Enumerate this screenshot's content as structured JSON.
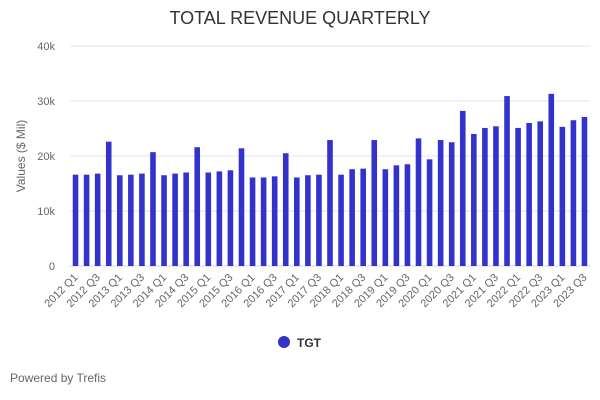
{
  "chart_data": {
    "type": "bar",
    "title": "TOTAL REVENUE QUARTERLY",
    "ylabel": "Values ($ Mil)",
    "xlabel": "",
    "ylim": [
      0,
      40000
    ],
    "yticks": [
      0,
      10000,
      20000,
      30000,
      40000
    ],
    "ytick_labels": [
      "0",
      "10k",
      "20k",
      "30k",
      "40k"
    ],
    "grid": true,
    "legend_position": "bottom",
    "color": "#3333cc",
    "categories": [
      "2012 Q1",
      "2012 Q2",
      "2012 Q3",
      "2012 Q4",
      "2013 Q1",
      "2013 Q2",
      "2013 Q3",
      "2013 Q4",
      "2014 Q1",
      "2014 Q2",
      "2014 Q3",
      "2014 Q4",
      "2015 Q1",
      "2015 Q2",
      "2015 Q3",
      "2015 Q4",
      "2016 Q1",
      "2016 Q2",
      "2016 Q3",
      "2016 Q4",
      "2017 Q1",
      "2017 Q2",
      "2017 Q3",
      "2017 Q4",
      "2018 Q1",
      "2018 Q2",
      "2018 Q3",
      "2018 Q4",
      "2019 Q1",
      "2019 Q2",
      "2019 Q3",
      "2019 Q4",
      "2020 Q1",
      "2020 Q2",
      "2020 Q3",
      "2020 Q4",
      "2021 Q1",
      "2021 Q2",
      "2021 Q3",
      "2021 Q4",
      "2022 Q1",
      "2022 Q2",
      "2022 Q3",
      "2022 Q4",
      "2023 Q1",
      "2023 Q2",
      "2023 Q3"
    ],
    "series": [
      {
        "name": "TGT",
        "values": [
          16600,
          16600,
          16800,
          22600,
          16500,
          16600,
          16800,
          20700,
          16500,
          16800,
          17000,
          21600,
          17000,
          17200,
          17400,
          21400,
          16100,
          16100,
          16300,
          20500,
          16100,
          16500,
          16600,
          22900,
          16600,
          17600,
          17700,
          22900,
          17600,
          18300,
          18500,
          23200,
          19400,
          22900,
          22500,
          28200,
          24000,
          25100,
          25400,
          30900,
          25100,
          26000,
          26300,
          31300,
          25300,
          26500,
          27100
        ]
      }
    ]
  },
  "footer": "Powered by Trefis"
}
